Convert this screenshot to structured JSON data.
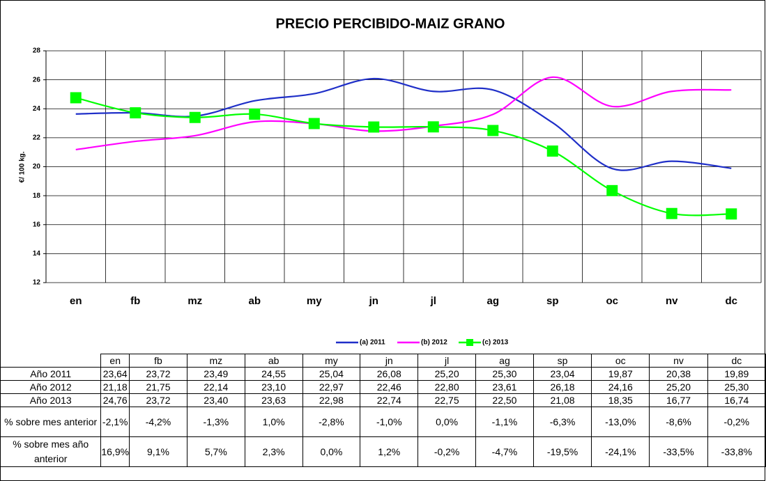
{
  "chart_data": {
    "type": "line",
    "title": "PRECIO PERCIBIDO-MAIZ GRANO",
    "y_label": "€/ 100 kg.",
    "categories": [
      "en",
      "fb",
      "mz",
      "ab",
      "my",
      "jn",
      "jl",
      "ag",
      "sp",
      "oc",
      "nv",
      "dc"
    ],
    "series": [
      {
        "name": "(a) 2011",
        "color": "#1f2fc8",
        "marker": false,
        "values": [
          23.64,
          23.72,
          23.49,
          24.55,
          25.04,
          26.08,
          25.2,
          25.3,
          23.04,
          19.87,
          20.38,
          19.89
        ]
      },
      {
        "name": "(b) 2012",
        "color": "#ff00ff",
        "marker": false,
        "values": [
          21.18,
          21.75,
          22.14,
          23.1,
          22.97,
          22.46,
          22.8,
          23.61,
          26.18,
          24.16,
          25.2,
          25.3
        ]
      },
      {
        "name": "(c) 2013",
        "color": "#00ff00",
        "marker": true,
        "values": [
          24.76,
          23.72,
          23.4,
          23.63,
          22.98,
          22.74,
          22.75,
          22.5,
          21.08,
          18.35,
          16.77,
          16.74
        ]
      }
    ],
    "ylim": [
      12,
      28
    ],
    "yticks": [
      12,
      14,
      16,
      18,
      20,
      22,
      24,
      26,
      28
    ],
    "grid": true,
    "smooth": true,
    "legend": "bottom"
  },
  "table": {
    "header": [
      "en",
      "fb",
      "mz",
      "ab",
      "my",
      "jn",
      "jl",
      "ag",
      "sp",
      "oc",
      "nv",
      "dc"
    ],
    "rows": [
      [
        "Año 2011",
        "23,64",
        "23,72",
        "23,49",
        "24,55",
        "25,04",
        "26,08",
        "25,20",
        "25,30",
        "23,04",
        "19,87",
        "20,38",
        "19,89"
      ],
      [
        "Año 2012",
        "21,18",
        "21,75",
        "22,14",
        "23,10",
        "22,97",
        "22,46",
        "22,80",
        "23,61",
        "26,18",
        "24,16",
        "25,20",
        "25,30"
      ],
      [
        "Año 2013",
        "24,76",
        "23,72",
        "23,40",
        "23,63",
        "22,98",
        "22,74",
        "22,75",
        "22,50",
        "21,08",
        "18,35",
        "16,77",
        "16,74"
      ],
      [
        "% sobre mes anterior",
        "-2,1%",
        "-4,2%",
        "-1,3%",
        "1,0%",
        "-2,8%",
        "-1,0%",
        "0,0%",
        "-1,1%",
        "-6,3%",
        "-13,0%",
        "-8,6%",
        "-0,2%"
      ],
      [
        "% sobre mes año anterior",
        "16,9%",
        "9,1%",
        "5,7%",
        "2,3%",
        "0,0%",
        "1,2%",
        "-0,2%",
        "-4,7%",
        "-19,5%",
        "-24,1%",
        "-33,5%",
        "-33,8%"
      ]
    ]
  }
}
